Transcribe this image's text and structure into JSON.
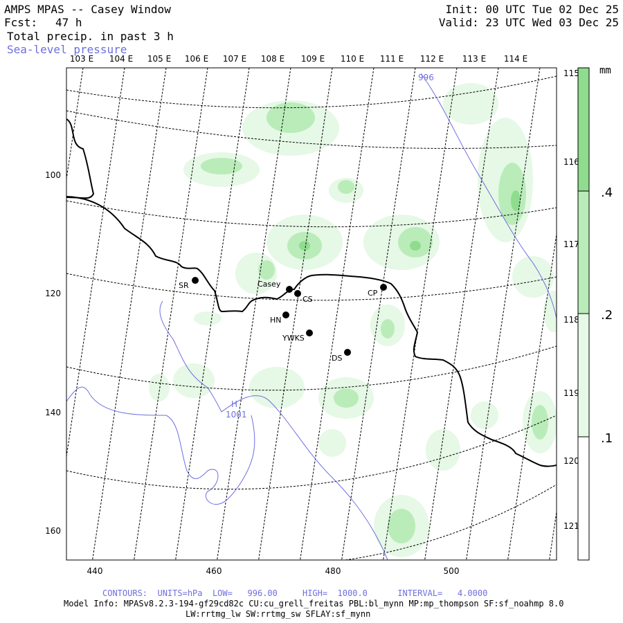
{
  "header": {
    "title": "AMPS MPAS -- Casey Window",
    "fcst_label": "Fcst:",
    "fcst_value": "47 h",
    "field": "Total precip. in past 3 h",
    "overlay": "Sea-level pressure",
    "init": "Init: 00 UTC Tue 02 Dec 25",
    "valid": "Valid: 23 UTC Wed 03 Dec 25"
  },
  "map": {
    "lon_labels_top": [
      "103 E",
      "104 E",
      "105 E",
      "106 E",
      "107 E",
      "108 E",
      "109 E",
      "110 E",
      "111 E",
      "112 E",
      "113 E",
      "114 E"
    ],
    "lon_labels_right": [
      "115 E",
      "116 E",
      "117 E",
      "118 E",
      "119 E",
      "120 E",
      "121 E"
    ],
    "x_ticks": [
      "440",
      "460",
      "480",
      "500"
    ],
    "y_ticks": [
      "100",
      "120",
      "140",
      "160"
    ],
    "stations": [
      {
        "id": "SR",
        "label": "SR"
      },
      {
        "id": "Casey",
        "label": "Casey"
      },
      {
        "id": "CS",
        "label": "CS"
      },
      {
        "id": "HN",
        "label": "HN"
      },
      {
        "id": "YWKS",
        "label": "YWKS"
      },
      {
        "id": "DS",
        "label": "DS"
      },
      {
        "id": "CP",
        "label": "CP"
      }
    ],
    "contour_labels": [
      "996",
      "H",
      "1001"
    ],
    "colors": {
      "precip_light": "#e6f8e6",
      "precip_mid": "#b9ecb9",
      "precip_dark": "#8fdc8f",
      "slp": "#6e6ee0",
      "coast": "#000000"
    }
  },
  "colorbar": {
    "unit": "mm",
    "labels": [
      ".4",
      ".2",
      ".1"
    ],
    "levels": [
      0.1,
      0.2,
      0.4
    ]
  },
  "footer": {
    "contours": "CONTOURS:  UNITS=hPa  LOW=   996.00     HIGH=  1000.0      INTERVAL=   4.0000",
    "model_info": "Model Info: MPASv8.2.3-194-gf29cd82c CU:cu_grell_freitas PBL:bl_mynn MP:mp_thompson SF:sf_noahmp 8.0",
    "model_info2": "LW:rrtmg_lw SW:rrtmg_sw SFLAY:sf_mynn"
  }
}
